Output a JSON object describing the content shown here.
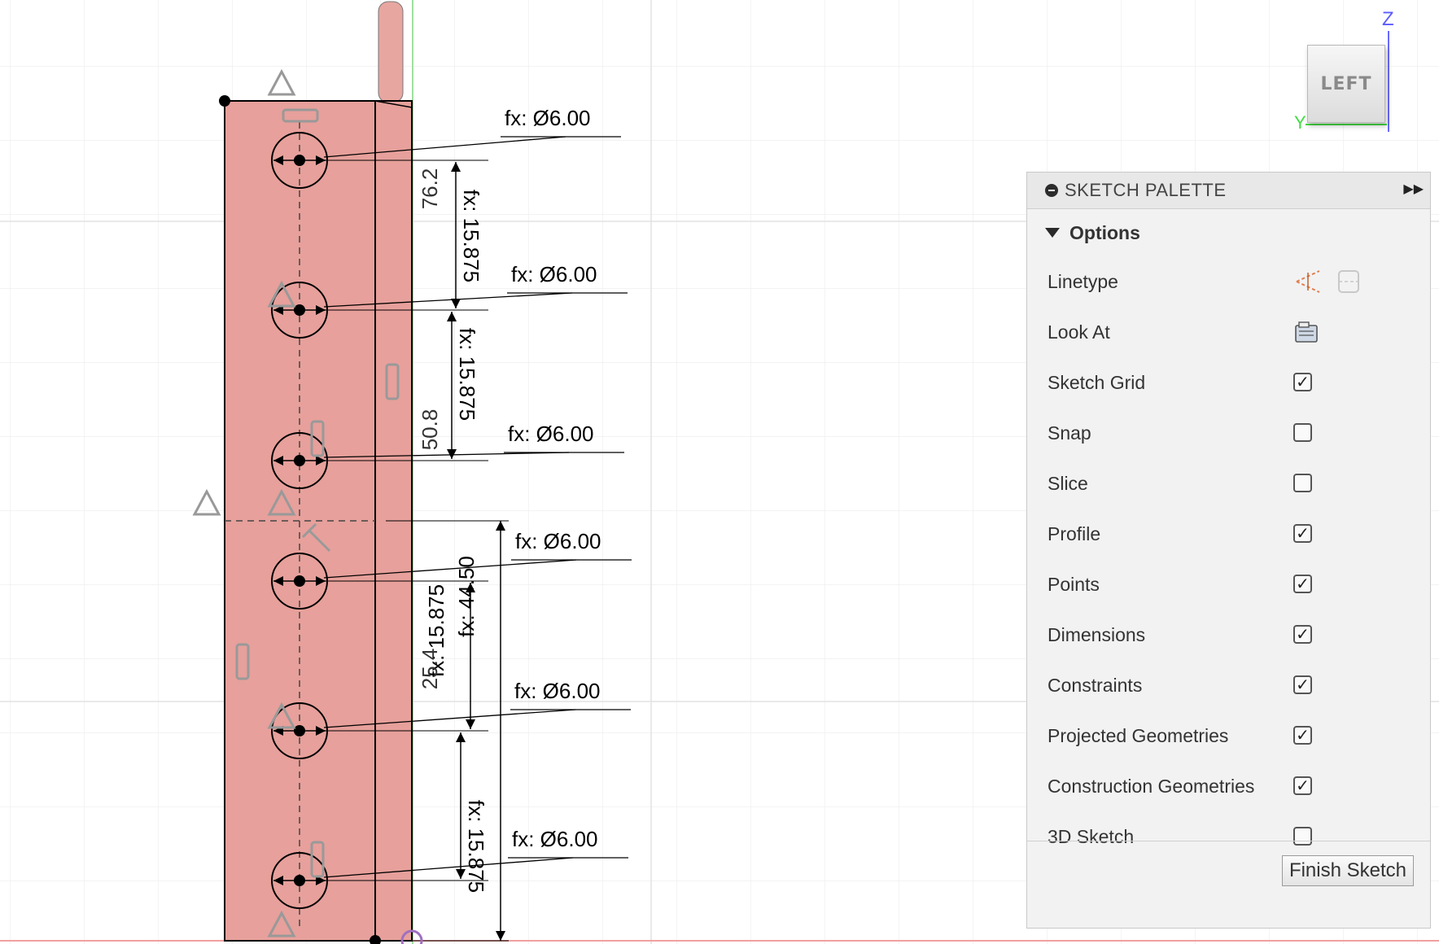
{
  "viewcube": {
    "face_label": "LEFT",
    "z_axis": "Z",
    "y_axis": "Y"
  },
  "sketch": {
    "diameters": [
      "fx: Ø6.00",
      "fx: Ø6.00",
      "fx: Ø6.00",
      "fx: Ø6.00",
      "fx: Ø6.00",
      "fx: Ø6.00"
    ],
    "spacing_dims": [
      "fx: 15.875",
      "fx: 15.875",
      "fx: 15.875",
      "fx: 15.875"
    ],
    "overall_dim": "fx: 44.50",
    "side_values": [
      "76.2",
      "50.8",
      "25.4"
    ]
  },
  "palette": {
    "title": "SKETCH PALETTE",
    "section": "Options",
    "options": [
      {
        "label": "Linetype",
        "control": "linetype-icons"
      },
      {
        "label": "Look At",
        "control": "look-at-icon"
      },
      {
        "label": "Sketch Grid",
        "control": "checkbox",
        "checked": true
      },
      {
        "label": "Snap",
        "control": "checkbox",
        "checked": false
      },
      {
        "label": "Slice",
        "control": "checkbox",
        "checked": false
      },
      {
        "label": "Profile",
        "control": "checkbox",
        "checked": true
      },
      {
        "label": "Points",
        "control": "checkbox",
        "checked": true
      },
      {
        "label": "Dimensions",
        "control": "checkbox",
        "checked": true
      },
      {
        "label": "Constraints",
        "control": "checkbox",
        "checked": true
      },
      {
        "label": "Projected Geometries",
        "control": "checkbox",
        "checked": true
      },
      {
        "label": "Construction Geometries",
        "control": "checkbox",
        "checked": true
      },
      {
        "label": "3D Sketch",
        "control": "checkbox",
        "checked": false
      }
    ],
    "finish_label": "Finish Sketch"
  }
}
